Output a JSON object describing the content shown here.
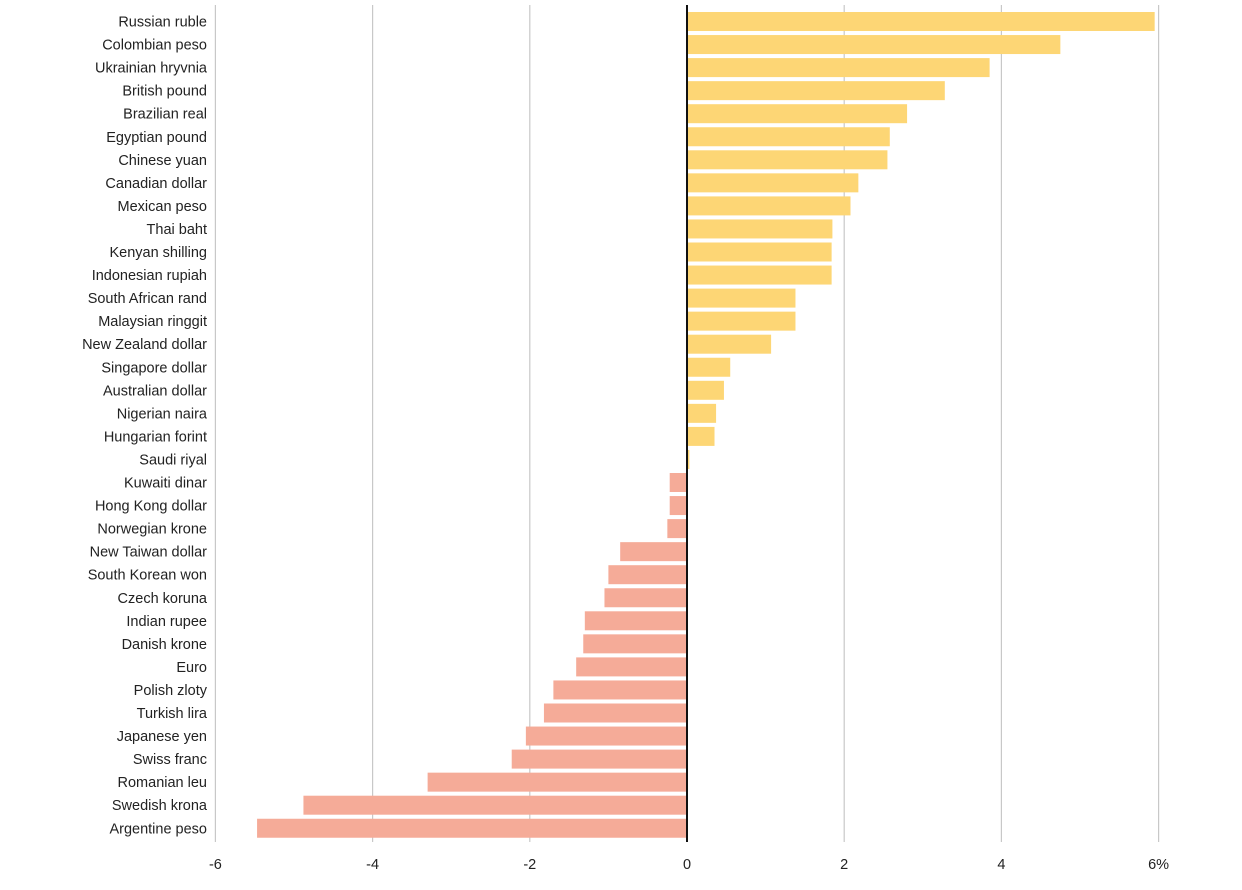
{
  "chart_data": {
    "type": "bar",
    "orientation": "horizontal",
    "title": "",
    "xlabel": "",
    "ylabel": "",
    "xlim": [
      -6,
      6
    ],
    "x_ticks": [
      -6,
      -4,
      -2,
      0,
      2,
      4,
      6
    ],
    "x_tick_labels": [
      "-6",
      "-4",
      "-2",
      "0",
      "2",
      "4",
      "6%"
    ],
    "grid": "vertical",
    "colors": {
      "positive": "#fdd675",
      "negative": "#f5ab98",
      "zero_line": "#111111",
      "grid": "#c8c8c8"
    },
    "categories": [
      "Russian ruble",
      "Colombian peso",
      "Ukrainian hryvnia",
      "British pound",
      "Brazilian real",
      "Egyptian pound",
      "Chinese yuan",
      "Canadian dollar",
      "Mexican peso",
      "Thai baht",
      "Kenyan shilling",
      "Indonesian rupiah",
      "South African rand",
      "Malaysian ringgit",
      "New Zealand dollar",
      "Singapore dollar",
      "Australian dollar",
      "Nigerian naira",
      "Hungarian forint",
      "Saudi riyal",
      "Kuwaiti dinar",
      "Hong Kong dollar",
      "Norwegian krone",
      "New Taiwan dollar",
      "South Korean won",
      "Czech koruna",
      "Indian rupee",
      "Danish krone",
      "Euro",
      "Polish zloty",
      "Turkish lira",
      "Japanese yen",
      "Swiss franc",
      "Romanian leu",
      "Swedish krona",
      "Argentine peso"
    ],
    "values": [
      5.95,
      4.75,
      3.85,
      3.28,
      2.8,
      2.58,
      2.55,
      2.18,
      2.08,
      1.85,
      1.84,
      1.84,
      1.38,
      1.38,
      1.07,
      0.55,
      0.47,
      0.37,
      0.35,
      0.03,
      -0.22,
      -0.22,
      -0.25,
      -0.85,
      -1.0,
      -1.05,
      -1.3,
      -1.32,
      -1.41,
      -1.7,
      -1.82,
      -2.05,
      -2.23,
      -3.3,
      -4.88,
      -5.47
    ]
  }
}
